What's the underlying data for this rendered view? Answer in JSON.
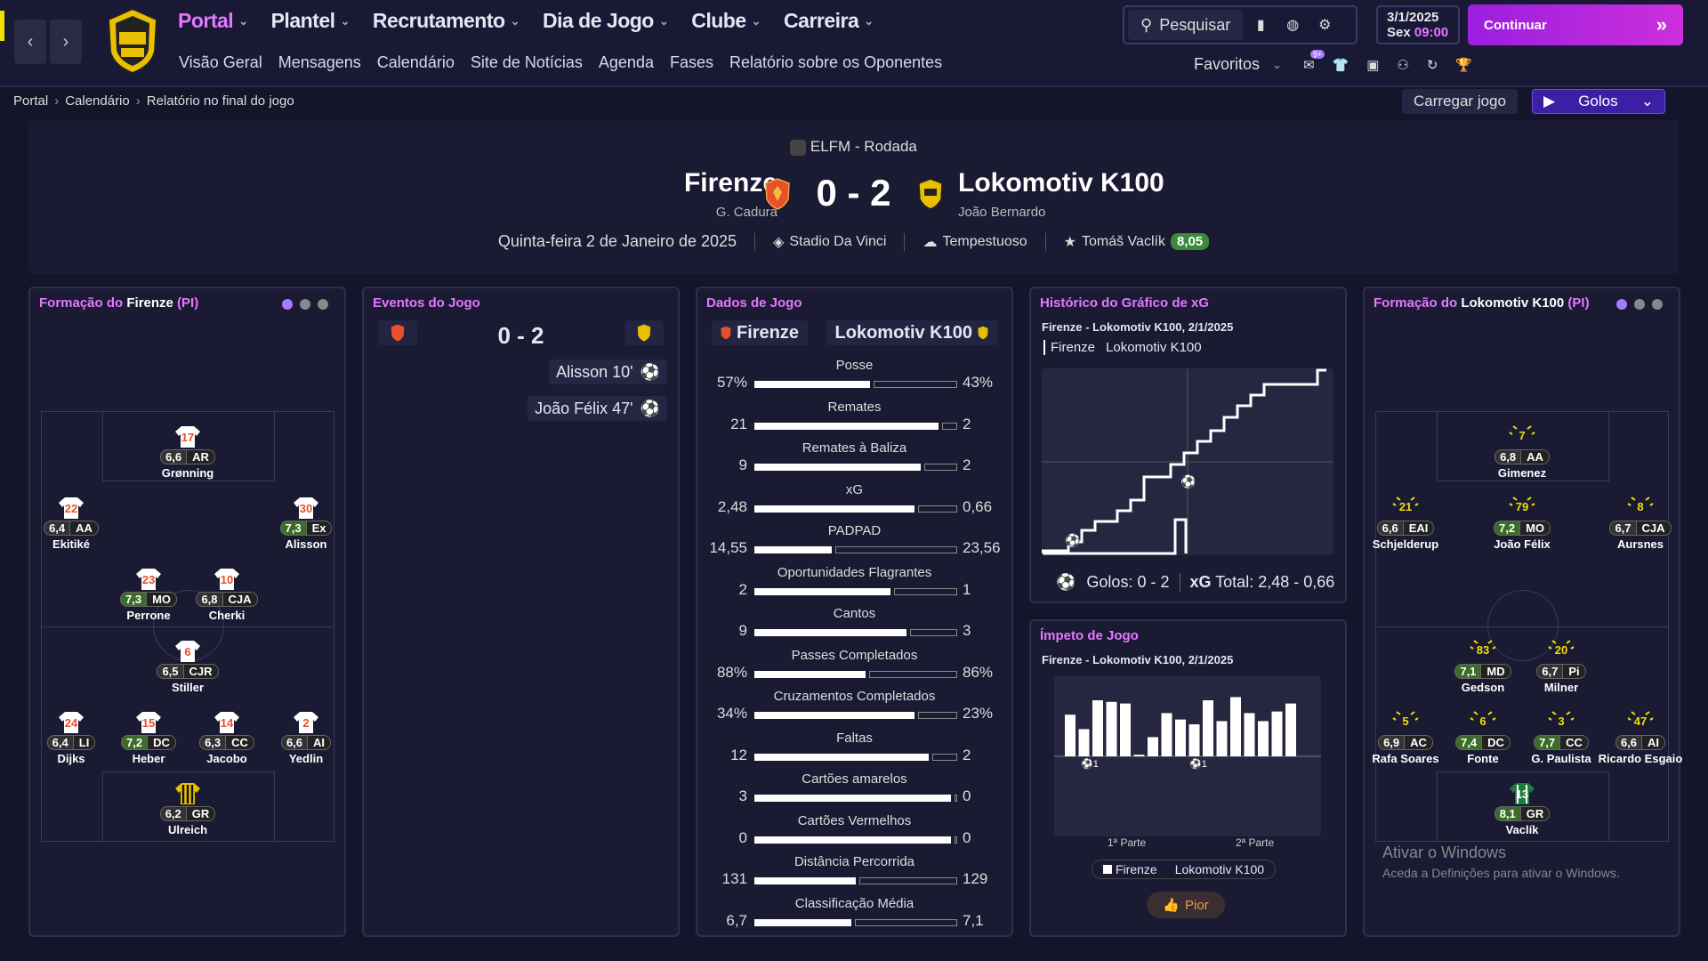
{
  "nav": {
    "items": [
      {
        "label": "Portal",
        "active": true
      },
      {
        "label": "Plantel",
        "active": false
      },
      {
        "label": "Recrutamento",
        "active": false
      },
      {
        "label": "Dia de Jogo",
        "active": false
      },
      {
        "label": "Clube",
        "active": false
      },
      {
        "label": "Carreira",
        "active": false
      }
    ],
    "sub": [
      "Visão Geral",
      "Mensagens",
      "Calendário",
      "Site de Notícias",
      "Agenda",
      "Fases",
      "Relatório sobre os Oponentes"
    ],
    "search_label": "Pesquisar",
    "date_line1": "3/1/2025",
    "date_day": "Sex",
    "date_time": "09:00",
    "continue_label": "Continuar",
    "favorites_label": "Favoritos",
    "fav_badge": "9+"
  },
  "breadcrumb": [
    "Portal",
    "Calendário",
    "Relatório no final do jogo"
  ],
  "load_label": "Carregar jogo",
  "golos_label": "Golos",
  "match": {
    "competition": "ELFM - Rodada",
    "home": "Firenze",
    "home_manager": "G. Cadura",
    "away": "Lokomotiv K100",
    "away_manager": "João Bernardo",
    "score": "0 - 2",
    "date": "Quinta-feira 2 de Janeiro de 2025",
    "stadium": "Stadio Da Vinci",
    "weather": "Tempestuoso",
    "motm": "Tomáš Vaclík",
    "motm_rating": "8,05"
  },
  "home_formation": {
    "title_prefix": "Formação do",
    "team": "Firenze",
    "suffix": "(PI)",
    "players": [
      {
        "num": "17",
        "rating": "6,6",
        "pos": "AR",
        "name": "Grønning"
      },
      {
        "num": "22",
        "rating": "6,4",
        "pos": "AA",
        "name": "Ekitiké"
      },
      {
        "num": "30",
        "rating": "7,3",
        "pos": "Ex",
        "name": "Alisson"
      },
      {
        "num": "23",
        "rating": "7,3",
        "pos": "MO",
        "name": "Perrone"
      },
      {
        "num": "10",
        "rating": "6,8",
        "pos": "CJA",
        "name": "Cherki"
      },
      {
        "num": "6",
        "rating": "6,5",
        "pos": "CJR",
        "name": "Stiller"
      },
      {
        "num": "24",
        "rating": "6,4",
        "pos": "LI",
        "name": "Dijks"
      },
      {
        "num": "15",
        "rating": "7,2",
        "pos": "DC",
        "name": "Heber"
      },
      {
        "num": "14",
        "rating": "6,3",
        "pos": "CC",
        "name": "Jacobo"
      },
      {
        "num": "2",
        "rating": "6,6",
        "pos": "AI",
        "name": "Yedlin"
      },
      {
        "num": "",
        "rating": "6,2",
        "pos": "GR",
        "name": "Ulreich"
      }
    ]
  },
  "away_formation": {
    "title_prefix": "Formação do",
    "team": "Lokomotiv K100",
    "suffix": "(PI)",
    "players": [
      {
        "num": "7",
        "rating": "6,8",
        "pos": "AA",
        "name": "Gimenez"
      },
      {
        "num": "21",
        "rating": "6,6",
        "pos": "EAI",
        "name": "Schjelderup"
      },
      {
        "num": "79",
        "rating": "7,2",
        "pos": "MO",
        "name": "João Félix"
      },
      {
        "num": "8",
        "rating": "6,7",
        "pos": "CJA",
        "name": "Aursnes"
      },
      {
        "num": "83",
        "rating": "7,1",
        "pos": "MD",
        "name": "Gedson"
      },
      {
        "num": "20",
        "rating": "6,7",
        "pos": "Pi",
        "name": "Milner"
      },
      {
        "num": "5",
        "rating": "6,9",
        "pos": "AC",
        "name": "Rafa Soares"
      },
      {
        "num": "6",
        "rating": "7,4",
        "pos": "DC",
        "name": "Fonte"
      },
      {
        "num": "3",
        "rating": "7,7",
        "pos": "CC",
        "name": "G. Paulista"
      },
      {
        "num": "47",
        "rating": "6,6",
        "pos": "AI",
        "name": "Ricardo Esgaio"
      },
      {
        "num": "13",
        "rating": "8,1",
        "pos": "GR",
        "name": "Vaclík"
      }
    ]
  },
  "events": {
    "title": "Eventos do Jogo",
    "score": "0 - 2",
    "items": [
      {
        "text": "Alisson 10'"
      },
      {
        "text": "João Félix 47'"
      }
    ]
  },
  "stats": {
    "title": "Dados de Jogo",
    "home": "Firenze",
    "away": "Lokomotiv K100",
    "rows": [
      {
        "label": "Posse",
        "home": "57%",
        "away": "43%",
        "hf": 0.57
      },
      {
        "label": "Remates",
        "home": "21",
        "away": "2",
        "hf": 0.91
      },
      {
        "label": "Remates à Baliza",
        "home": "9",
        "away": "2",
        "hf": 0.82
      },
      {
        "label": "xG",
        "home": "2,48",
        "away": "0,66",
        "hf": 0.79
      },
      {
        "label": "PADPAD",
        "home": "14,55",
        "away": "23,56",
        "hf": 0.38
      },
      {
        "label": "Oportunidades Flagrantes",
        "home": "2",
        "away": "1",
        "hf": 0.67
      },
      {
        "label": "Cantos",
        "home": "9",
        "away": "3",
        "hf": 0.75
      },
      {
        "label": "Passes Completados",
        "home": "88%",
        "away": "86%",
        "hf": 0.55
      },
      {
        "label": "Cruzamentos Completados",
        "home": "34%",
        "away": "23%",
        "hf": 0.79
      },
      {
        "label": "Faltas",
        "home": "12",
        "away": "2",
        "hf": 0.86
      },
      {
        "label": "Cartões amarelos",
        "home": "3",
        "away": "0",
        "hf": 0.97
      },
      {
        "label": "Cartões Vermelhos",
        "home": "0",
        "away": "0",
        "hf": 0.97
      },
      {
        "label": "Distância Percorrida",
        "home": "131",
        "away": "129",
        "hf": 0.5
      },
      {
        "label": "Classificação Média",
        "home": "6,7",
        "away": "7,1",
        "hf": 0.48
      }
    ]
  },
  "xg": {
    "title": "Histórico do Gráfico de xG",
    "subtitle": "Firenze - Lokomotiv K100, 2/1/2025",
    "legend_home": "Firenze",
    "legend_away": "Lokomotiv K100",
    "goals_label": "Golos: 0 - 2",
    "xg_label": "xG",
    "xg_total": "Total: 2,48 - 0,66"
  },
  "momentum": {
    "title": "Ímpeto de Jogo",
    "subtitle": "Firenze - Lokomotiv K100, 2/1/2025",
    "first_half": "1ª Parte",
    "second_half": "2ª Parte",
    "legend_home": "Firenze",
    "legend_away": "Lokomotiv K100",
    "pior_label": "Pior",
    "goal_marker": "1",
    "bars": [
      0.52,
      0.34,
      0.7,
      0.68,
      0.66,
      0.02,
      0.24,
      0.54,
      0.46,
      0.4,
      0.7,
      0.44,
      0.74,
      0.54,
      0.44,
      0.56,
      0.66
    ]
  },
  "windows": {
    "line1": "Ativar o Windows",
    "line2": "Aceda a Definições para ativar o Windows."
  },
  "colors": {
    "accent": "#e478ff",
    "continue": "#b21fe0",
    "rating_green": "#3a8a3a",
    "away_kit": "#f0e000",
    "home_kit": "#e8502a"
  }
}
